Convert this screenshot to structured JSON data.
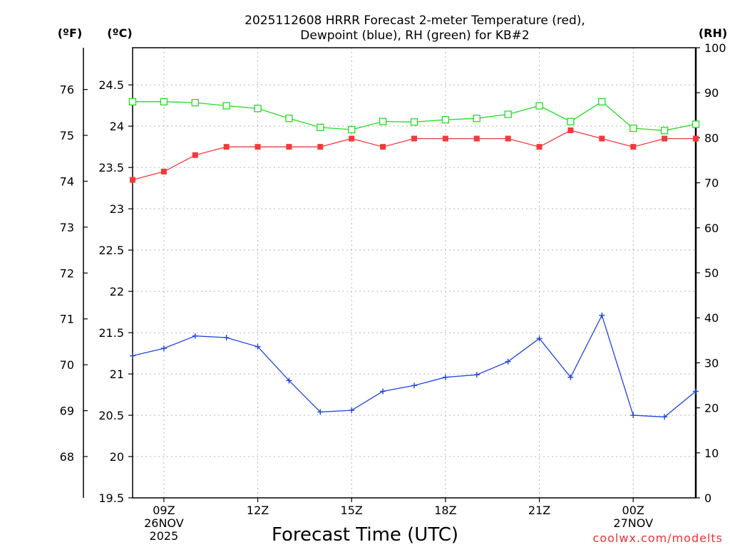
{
  "chart_data": {
    "type": "line",
    "title_line1": "2025112608 HRRR Forecast 2-meter Temperature (red),",
    "title_line2": "Dewpoint (blue), RH (green) for KB#2",
    "xlabel": "Forecast Time (UTC)",
    "unit_f": "(ºF)",
    "unit_c": "(ºC)",
    "unit_rh": "(RH)",
    "credit": "coolwx.com/modelts",
    "x_hours": [
      8,
      9,
      10,
      11,
      12,
      13,
      14,
      15,
      16,
      17,
      18,
      19,
      20,
      21,
      22,
      23,
      24,
      25,
      26
    ],
    "x_ticks": [
      {
        "hour": 9,
        "lines": [
          "09Z",
          "26NOV",
          "2025"
        ]
      },
      {
        "hour": 12,
        "lines": [
          "12Z"
        ]
      },
      {
        "hour": 15,
        "lines": [
          "15Z"
        ]
      },
      {
        "hour": 18,
        "lines": [
          "18Z"
        ]
      },
      {
        "hour": 21,
        "lines": [
          "21Z"
        ]
      },
      {
        "hour": 24,
        "lines": [
          "00Z",
          "27NOV"
        ]
      }
    ],
    "c_axis": {
      "min": 19.5,
      "max": 24.95,
      "ticks": [
        "19.5",
        "20",
        "20.5",
        "21",
        "21.5",
        "22",
        "22.5",
        "23",
        "23.5",
        "24",
        "24.5"
      ]
    },
    "f_axis": {
      "ticks": [
        "68",
        "69",
        "70",
        "71",
        "72",
        "73",
        "74",
        "75",
        "76"
      ]
    },
    "rh_axis": {
      "min": 0,
      "max": 100,
      "ticks": [
        "0",
        "10",
        "20",
        "30",
        "40",
        "50",
        "60",
        "70",
        "80",
        "90",
        "100"
      ]
    },
    "series": [
      {
        "name": "Temperature",
        "color": "#ef3b3b",
        "marker": "filled-square",
        "axis": "celsius",
        "values": [
          23.35,
          23.45,
          23.65,
          23.75,
          23.75,
          23.75,
          23.75,
          23.85,
          23.75,
          23.85,
          23.85,
          23.85,
          23.85,
          23.75,
          23.95,
          23.85,
          23.75,
          23.85,
          23.85
        ]
      },
      {
        "name": "Dewpoint",
        "color": "#2244dd",
        "marker": "plus",
        "axis": "celsius",
        "values": [
          21.22,
          21.31,
          21.46,
          21.44,
          21.33,
          20.92,
          20.54,
          20.56,
          20.79,
          20.86,
          20.96,
          20.99,
          21.15,
          21.43,
          20.96,
          21.71,
          20.5,
          20.48,
          20.79
        ]
      },
      {
        "name": "RH",
        "color": "#22dd22",
        "marker": "open-square",
        "axis": "rh",
        "values": [
          88.0,
          88.0,
          87.8,
          87.1,
          86.5,
          84.3,
          82.3,
          81.8,
          83.6,
          83.5,
          84.0,
          84.3,
          85.2,
          87.1,
          83.6,
          88.0,
          82.1,
          81.6,
          83.0
        ]
      }
    ]
  }
}
